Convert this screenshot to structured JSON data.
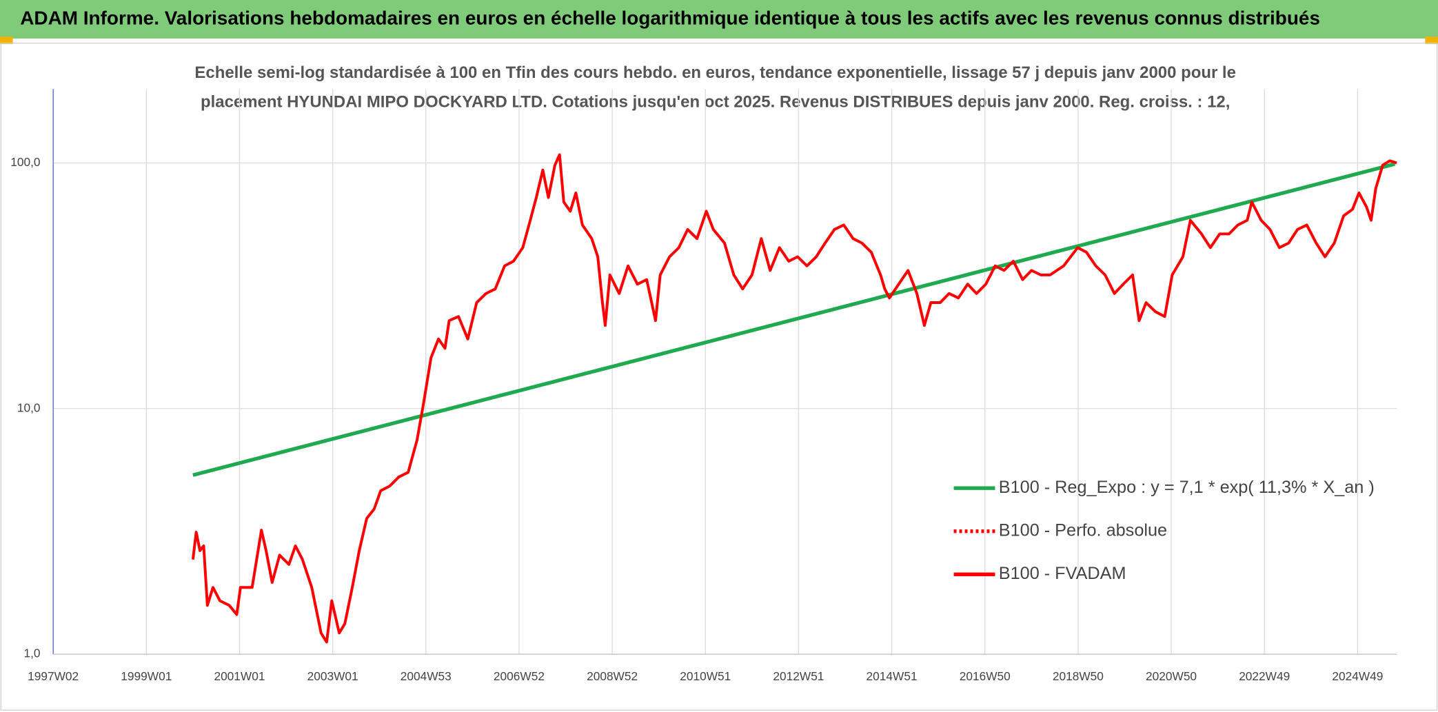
{
  "chart_data": {
    "type": "line",
    "title": "ADAM Informe. Valorisations hebdomadaires en euros en échelle logarithmique identique à tous les actifs avec les revenus connus distribués",
    "subtitle": "Echelle semi-log standardisée à 100 en Tfin des cours hebdo. en euros, tendance exponentielle, lissage 57 j depuis janv 2000 pour le placement HYUNDAI MIPO DOCKYARD LTD. Cotations jusqu'en oct 2025. Revenus DISTRIBUES depuis janv 2000. Reg. croiss. : 12,",
    "log_scale": true,
    "grid": true,
    "xlim": [
      1997,
      2025.84
    ],
    "xticks": [
      {
        "value": 1997,
        "label": "1997W02"
      },
      {
        "value": 1999,
        "label": "1999W01"
      },
      {
        "value": 2001,
        "label": "2001W01"
      },
      {
        "value": 2003,
        "label": "2003W01"
      },
      {
        "value": 2005,
        "label": "2004W53"
      },
      {
        "value": 2007,
        "label": "2006W52"
      },
      {
        "value": 2009,
        "label": "2008W52"
      },
      {
        "value": 2011,
        "label": "2010W51"
      },
      {
        "value": 2013,
        "label": "2012W51"
      },
      {
        "value": 2015,
        "label": "2014W51"
      },
      {
        "value": 2017,
        "label": "2016W50"
      },
      {
        "value": 2019,
        "label": "2018W50"
      },
      {
        "value": 2021,
        "label": "2020W50"
      },
      {
        "value": 2023,
        "label": "2022W49"
      },
      {
        "value": 2025,
        "label": "2024W49"
      }
    ],
    "ylim": [
      1,
      200
    ],
    "yticks": [
      {
        "value": 1,
        "label": "1,0"
      },
      {
        "value": 10,
        "label": "10,0"
      },
      {
        "value": 100,
        "label": "100,0"
      }
    ],
    "series": [
      {
        "name": "B100 - Reg_Expo : y = 7,1 * exp( 11,3% *  X_an )",
        "color": "#1faa4f",
        "style": "solid",
        "x": [
          2000.0,
          2025.8
        ],
        "values": [
          5.36,
          99
        ]
      },
      {
        "name": "B100 - Perfo. absolue",
        "color": "#ff0000",
        "style": "dotted",
        "x": [],
        "values": []
      },
      {
        "name": "B100 - FVADAM",
        "color": "#ff0000",
        "style": "solid",
        "x": [
          2000.0,
          2000.07,
          2000.15,
          2000.23,
          2000.31,
          2000.43,
          2000.58,
          2000.78,
          2000.94,
          2001.02,
          2001.27,
          2001.47,
          2001.57,
          2001.7,
          2001.86,
          2002.06,
          2002.2,
          2002.35,
          2002.55,
          2002.75,
          2002.87,
          2002.98,
          2003.14,
          2003.26,
          2003.42,
          2003.57,
          2003.73,
          2003.89,
          2004.03,
          2004.22,
          2004.42,
          2004.62,
          2004.81,
          2004.95,
          2005.11,
          2005.27,
          2005.41,
          2005.5,
          2005.7,
          2005.9,
          2006.09,
          2006.29,
          2006.49,
          2006.69,
          2006.88,
          2007.08,
          2007.24,
          2007.37,
          2007.51,
          2007.63,
          2007.77,
          2007.87,
          2007.96,
          2008.1,
          2008.22,
          2008.36,
          2008.56,
          2008.69,
          2008.79,
          2008.85,
          2008.95,
          2009.15,
          2009.34,
          2009.54,
          2009.74,
          2009.93,
          2010.03,
          2010.23,
          2010.43,
          2010.62,
          2010.82,
          2011.02,
          2011.17,
          2011.41,
          2011.61,
          2011.8,
          2012.0,
          2012.2,
          2012.39,
          2012.59,
          2012.79,
          2012.98,
          2013.18,
          2013.38,
          2013.57,
          2013.77,
          2013.97,
          2014.17,
          2014.36,
          2014.56,
          2014.76,
          2014.85,
          2014.95,
          2015.15,
          2015.35,
          2015.54,
          2015.7,
          2015.84,
          2016.04,
          2016.23,
          2016.43,
          2016.63,
          2016.82,
          2017.02,
          2017.22,
          2017.41,
          2017.61,
          2017.81,
          2018.0,
          2018.2,
          2018.4,
          2018.69,
          2018.99,
          2019.18,
          2019.38,
          2019.58,
          2019.78,
          2019.97,
          2020.17,
          2020.31,
          2020.46,
          2020.66,
          2020.86,
          2021.02,
          2021.25,
          2021.41,
          2021.65,
          2021.84,
          2022.04,
          2022.24,
          2022.43,
          2022.63,
          2022.73,
          2022.93,
          2023.12,
          2023.32,
          2023.52,
          2023.71,
          2023.91,
          2024.11,
          2024.3,
          2024.5,
          2024.7,
          2024.89,
          2025.03,
          2025.19,
          2025.29,
          2025.39,
          2025.54,
          2025.69,
          2025.84
        ],
        "values": [
          2.43,
          3.14,
          2.64,
          2.76,
          1.58,
          1.87,
          1.65,
          1.58,
          1.45,
          1.87,
          1.87,
          3.2,
          2.64,
          1.96,
          2.53,
          2.32,
          2.76,
          2.43,
          1.87,
          1.22,
          1.12,
          1.65,
          1.22,
          1.33,
          1.87,
          2.64,
          3.57,
          3.9,
          4.63,
          4.83,
          5.27,
          5.5,
          7.44,
          10.5,
          16.1,
          19.2,
          17.6,
          22.8,
          23.7,
          19.2,
          27,
          29.4,
          30.7,
          38.1,
          39.8,
          45.2,
          58.4,
          72.3,
          93.6,
          72.3,
          98,
          108,
          69.3,
          63.6,
          75.5,
          55.9,
          49.2,
          41.5,
          27,
          21.8,
          35,
          29.4,
          38.1,
          32.1,
          33.5,
          22.8,
          35,
          41.5,
          45.2,
          53.6,
          49.2,
          63.6,
          53.6,
          47.2,
          35,
          30.7,
          35,
          49.2,
          36.5,
          45.2,
          39.8,
          41.5,
          38.1,
          41.5,
          47.2,
          53.6,
          55.9,
          49.2,
          47.2,
          43.3,
          35,
          30.7,
          28.2,
          32.1,
          36.5,
          29.4,
          21.8,
          27,
          27,
          29.4,
          28.2,
          32.1,
          29.4,
          32.1,
          38.1,
          36.5,
          39.8,
          33.5,
          36.5,
          35,
          35,
          38.1,
          45.2,
          43.3,
          38.1,
          35,
          29.4,
          32.1,
          35,
          22.8,
          27,
          24.8,
          23.7,
          35,
          41.5,
          58.4,
          51.4,
          45.2,
          51.4,
          51.4,
          55.9,
          58.4,
          69.3,
          58.4,
          53.6,
          45.2,
          47.2,
          53.6,
          55.9,
          47.2,
          41.5,
          47.2,
          60.9,
          64.7,
          75.5,
          66.3,
          58.4,
          78.8,
          98,
          102,
          100
        ]
      }
    ]
  }
}
